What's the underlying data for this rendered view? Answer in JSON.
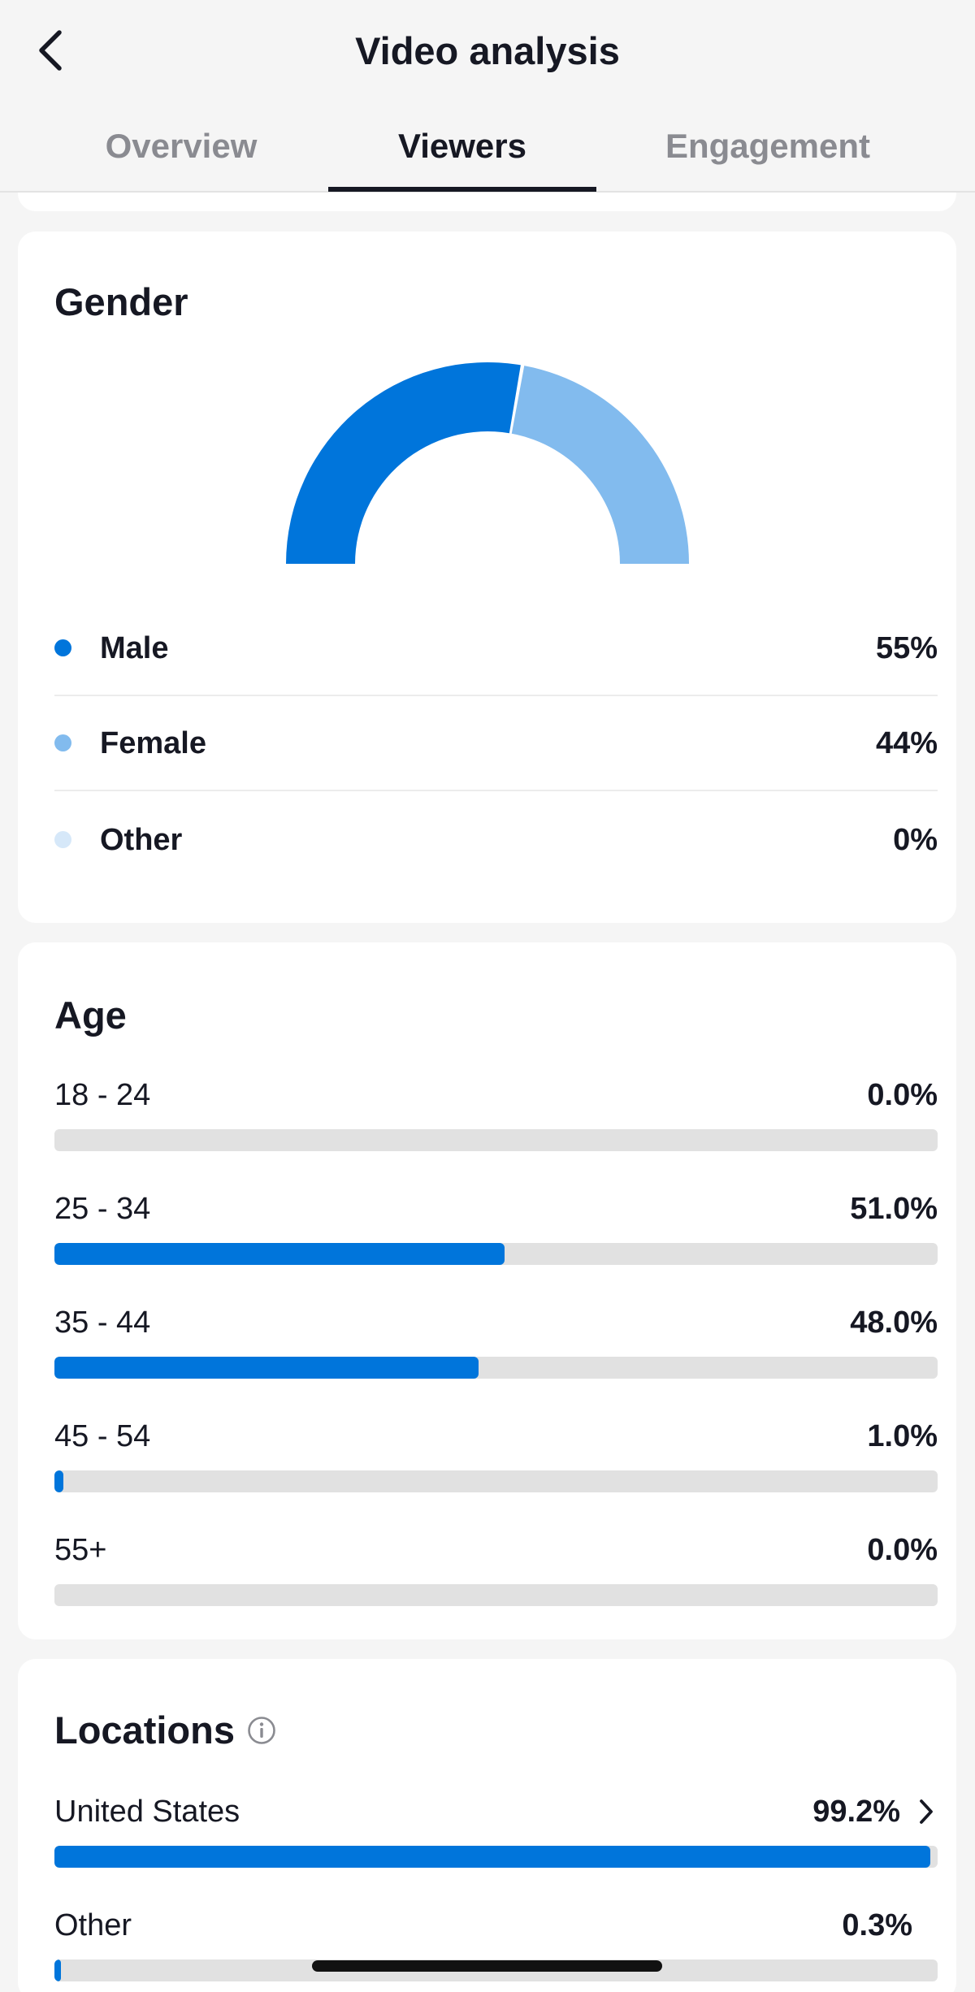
{
  "header": {
    "title": "Video analysis",
    "back_icon": "chevron-left-icon"
  },
  "tabs": [
    {
      "label": "Overview",
      "active": false
    },
    {
      "label": "Viewers",
      "active": true
    },
    {
      "label": "Engagement",
      "active": false
    }
  ],
  "gender": {
    "title": "Gender",
    "items": [
      {
        "label": "Male",
        "value": "55%",
        "fraction": 0.55,
        "color": "#0075db"
      },
      {
        "label": "Female",
        "value": "44%",
        "fraction": 0.44,
        "color": "#82bbee"
      },
      {
        "label": "Other",
        "value": "0%",
        "fraction": 0.0,
        "color": "#d6e8f9"
      }
    ]
  },
  "age": {
    "title": "Age",
    "items": [
      {
        "label": "18 - 24",
        "value": "0.0%",
        "fraction": 0.0
      },
      {
        "label": "25 - 34",
        "value": "51.0%",
        "fraction": 0.51
      },
      {
        "label": "35 - 44",
        "value": "48.0%",
        "fraction": 0.48
      },
      {
        "label": "45 - 54",
        "value": "1.0%",
        "fraction": 0.01
      },
      {
        "label": "55+",
        "value": "0.0%",
        "fraction": 0.0
      }
    ]
  },
  "locations": {
    "title": "Locations",
    "info_icon": "info-icon",
    "items": [
      {
        "label": "United States",
        "value": "99.2%",
        "fraction": 0.992,
        "chevron": true
      },
      {
        "label": "Other",
        "value": "0.3%",
        "fraction": 0.003,
        "chevron": false
      }
    ]
  },
  "colors": {
    "accent": "#0075db",
    "track": "#e1e1e1"
  }
}
